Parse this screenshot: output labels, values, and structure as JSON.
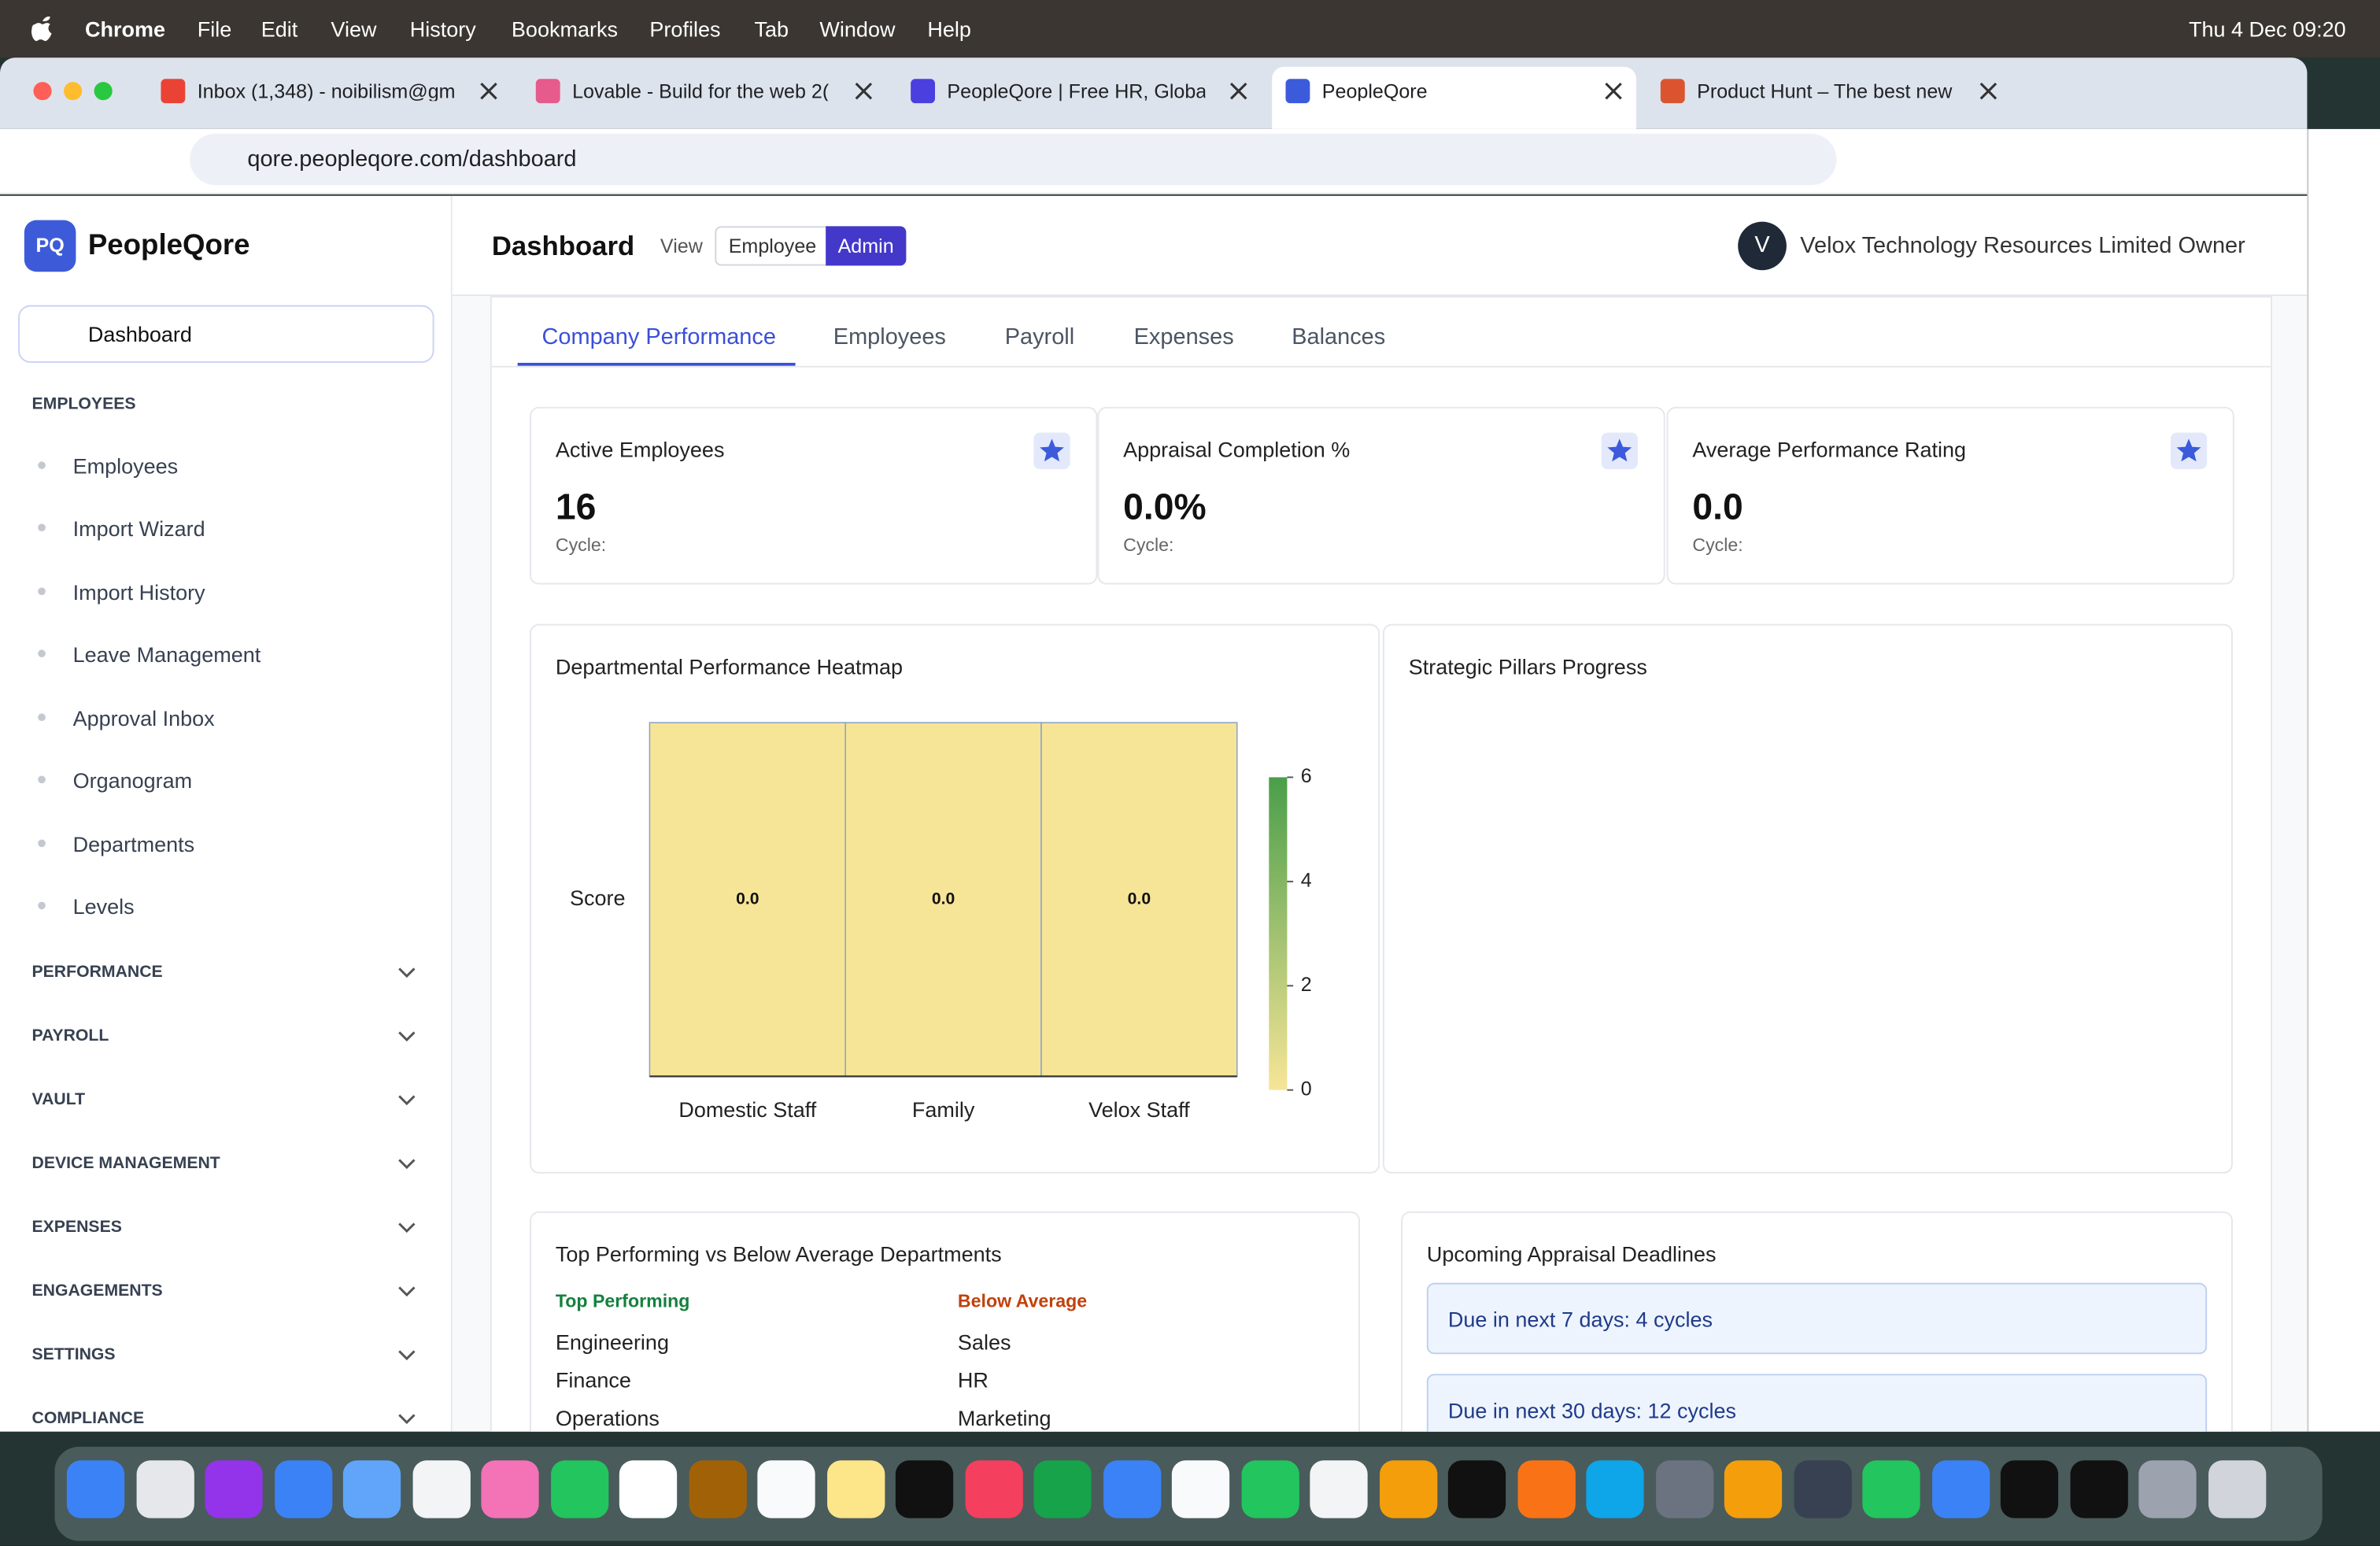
{
  "menubar": {
    "app": "Chrome",
    "menus": [
      "File",
      "Edit",
      "View",
      "History",
      "Bookmarks",
      "Profiles",
      "Tab",
      "Window",
      "Help"
    ],
    "clock": "Thu 4 Dec  09:20"
  },
  "browser": {
    "tabs": [
      "Inbox (1,348) - noibilism@gm",
      "Lovable - Build for the web 2(",
      "PeopleQore | Free HR, Global",
      "PeopleQore",
      "Product Hunt – The best new"
    ],
    "url": "qore.peopleqore.com/dashboard"
  },
  "sidebar": {
    "logo": "PQ",
    "brand": "PeopleQore",
    "active": "Dashboard",
    "open_section": "EMPLOYEES",
    "items": [
      "Employees",
      "Import Wizard",
      "Import History",
      "Leave Management",
      "Approval Inbox",
      "Organogram",
      "Departments",
      "Levels"
    ],
    "sections": [
      "PERFORMANCE",
      "PAYROLL",
      "VAULT",
      "DEVICE MANAGEMENT",
      "EXPENSES",
      "ENGAGEMENTS",
      "SETTINGS",
      "COMPLIANCE"
    ]
  },
  "header": {
    "title": "Dashboard",
    "view_label": "View",
    "view_options": [
      "Employee",
      "Admin"
    ],
    "avatar": "V",
    "org": "Velox Technology Resources Limited Owner"
  },
  "tabs": [
    "Company Performance",
    "Employees",
    "Payroll",
    "Expenses",
    "Balances"
  ],
  "kpis": [
    {
      "label": "Active Employees",
      "value": "16",
      "sub": "Cycle:"
    },
    {
      "label": "Appraisal Completion %",
      "value": "0.0%",
      "sub": "Cycle:"
    },
    {
      "label": "Average Performance Rating",
      "value": "0.0",
      "sub": "Cycle:"
    }
  ],
  "chart_data": {
    "type": "heatmap",
    "title": "Departmental Performance Heatmap",
    "rows": [
      "Score"
    ],
    "categories": [
      "Domestic Staff",
      "Family",
      "Velox Staff"
    ],
    "values": [
      [
        0,
        0,
        0
      ]
    ],
    "value_labels": [
      [
        "0.0",
        "0.0",
        "0.0"
      ]
    ],
    "clim": [
      0,
      6
    ],
    "cticks": [
      0,
      2,
      4,
      6
    ],
    "colors": [
      "#f7e597",
      "#4a9e4a"
    ]
  },
  "pillars": {
    "title": "Strategic Pillars Progress"
  },
  "departments": {
    "title": "Top Performing vs Below Average Departments",
    "top_label": "Top Performing",
    "top": [
      "Engineering",
      "Finance",
      "Operations"
    ],
    "below_label": "Below Average",
    "below": [
      "Sales",
      "HR",
      "Marketing"
    ]
  },
  "deadlines": {
    "title": "Upcoming Appraisal Deadlines",
    "items": [
      "Due in next 7 days: 4 cycles",
      "Due in next 30 days: 12 cycles"
    ]
  }
}
